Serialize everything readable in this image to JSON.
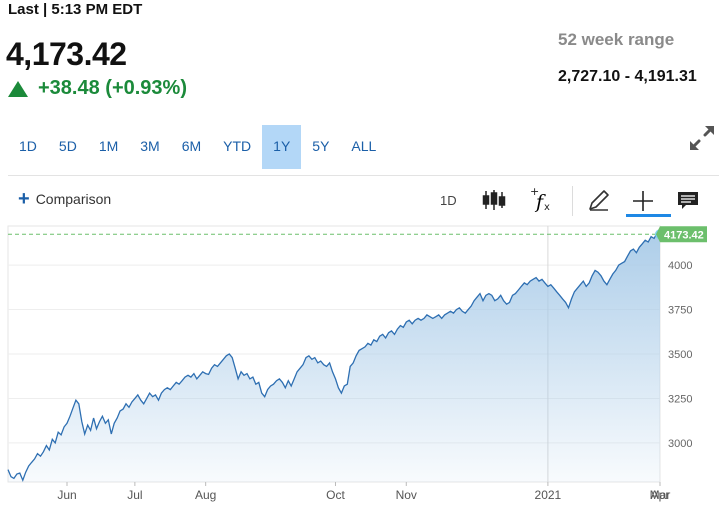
{
  "header": {
    "last_label": "Last | 5:13 PM EDT",
    "price": "4,173.42",
    "change": "+38.48 (+0.93%)",
    "change_color": "#1b8a3a",
    "range_title": "52 week range",
    "range_value": "2,727.10 - 4,191.31"
  },
  "tabs": [
    {
      "label": "1D"
    },
    {
      "label": "5D"
    },
    {
      "label": "1M"
    },
    {
      "label": "3M"
    },
    {
      "label": "6M"
    },
    {
      "label": "YTD"
    },
    {
      "label": "1Y",
      "active": true
    },
    {
      "label": "5Y"
    },
    {
      "label": "ALL"
    }
  ],
  "toolbar": {
    "comparison_label": "Comparison",
    "interval_label": "1D",
    "icons": [
      "plus-icon",
      "candlestick-icon",
      "function-icon",
      "pencil-icon",
      "crosshair-icon",
      "comment-icon",
      "expand-icon"
    ],
    "accent_color": "#1e88e5"
  },
  "chart_data": {
    "type": "area",
    "series": [
      {
        "values": [
          2850,
          2810,
          2800,
          2825,
          2830,
          2790,
          2835,
          2870,
          2890,
          2910,
          2940,
          2925,
          2950,
          2985,
          2960,
          3020,
          3000,
          3060,
          3045,
          3090,
          3110,
          3150,
          3195,
          3240,
          3220,
          3120,
          3050,
          3100,
          3070,
          3140,
          3080,
          3120,
          3150,
          3110,
          3130,
          3050,
          3110,
          3140,
          3180,
          3190,
          3220,
          3200,
          3230,
          3250,
          3270,
          3240,
          3220,
          3250,
          3280,
          3260,
          3270,
          3240,
          3280,
          3300,
          3310,
          3300,
          3320,
          3340,
          3330,
          3350,
          3370,
          3380,
          3370,
          3390,
          3360,
          3380,
          3400,
          3390,
          3385,
          3420,
          3440,
          3430,
          3450,
          3470,
          3490,
          3500,
          3480,
          3420,
          3360,
          3400,
          3380,
          3390,
          3360,
          3370,
          3330,
          3340,
          3280,
          3260,
          3300,
          3320,
          3330,
          3350,
          3360,
          3340,
          3310,
          3350,
          3320,
          3360,
          3400,
          3420,
          3440,
          3480,
          3490,
          3470,
          3480,
          3450,
          3460,
          3440,
          3430,
          3450,
          3400,
          3360,
          3310,
          3280,
          3320,
          3330,
          3430,
          3450,
          3490,
          3520,
          3530,
          3540,
          3560,
          3550,
          3580,
          3570,
          3600,
          3610,
          3590,
          3620,
          3630,
          3610,
          3640,
          3660,
          3650,
          3680,
          3690,
          3670,
          3690,
          3700,
          3690,
          3700,
          3720,
          3710,
          3700,
          3710,
          3720,
          3700,
          3720,
          3730,
          3740,
          3730,
          3750,
          3760,
          3740,
          3730,
          3750,
          3770,
          3800,
          3820,
          3840,
          3800,
          3830,
          3840,
          3830,
          3800,
          3810,
          3830,
          3800,
          3780,
          3790,
          3830,
          3840,
          3860,
          3880,
          3900,
          3890,
          3910,
          3920,
          3930,
          3910,
          3920,
          3900,
          3880,
          3890,
          3870,
          3850,
          3830,
          3810,
          3790,
          3760,
          3810,
          3850,
          3870,
          3890,
          3910,
          3880,
          3900,
          3940,
          3970,
          3960,
          3940,
          3910,
          3890,
          3920,
          3950,
          3970,
          4000,
          4010,
          4020,
          4050,
          4080,
          4090,
          4070,
          4100,
          4120,
          4140,
          4130,
          4160,
          4150,
          4180,
          4173.42
        ]
      }
    ],
    "x_tick_labels": [
      "Jun",
      "Jul",
      "Aug",
      "Oct",
      "Nov",
      "2021",
      "Mar",
      "Apr"
    ],
    "y_ticks": [
      3000,
      3250,
      3500,
      3750,
      4000
    ],
    "last_value_label": "4173.42",
    "ylim": [
      2780,
      4220
    ],
    "grid": true,
    "fill_color": "#a9cbe8",
    "line_color": "#2e6fb2",
    "last_label_color": "#6cbf6c"
  }
}
